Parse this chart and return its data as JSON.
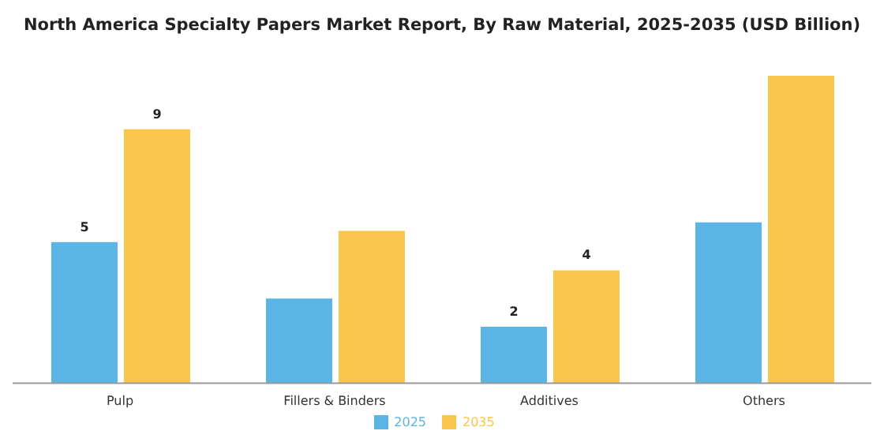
{
  "chart_data": {
    "type": "bar",
    "title": "North America Specialty Papers Market Report, By Raw Material, 2025-2035 (USD Billion)",
    "categories": [
      "Pulp",
      "Fillers & Binders",
      "Additives",
      "Others"
    ],
    "series": [
      {
        "name": "2025",
        "color": "#5ab4e5",
        "values": [
          5,
          3,
          2,
          5.7
        ],
        "value_labels": [
          "5",
          null,
          "2",
          null
        ]
      },
      {
        "name": "2035",
        "color": "#fac54b",
        "values": [
          9,
          5.4,
          4,
          10.9
        ],
        "value_labels": [
          "9",
          null,
          "4",
          null
        ]
      }
    ],
    "legend": "bottom",
    "grid": false
  }
}
